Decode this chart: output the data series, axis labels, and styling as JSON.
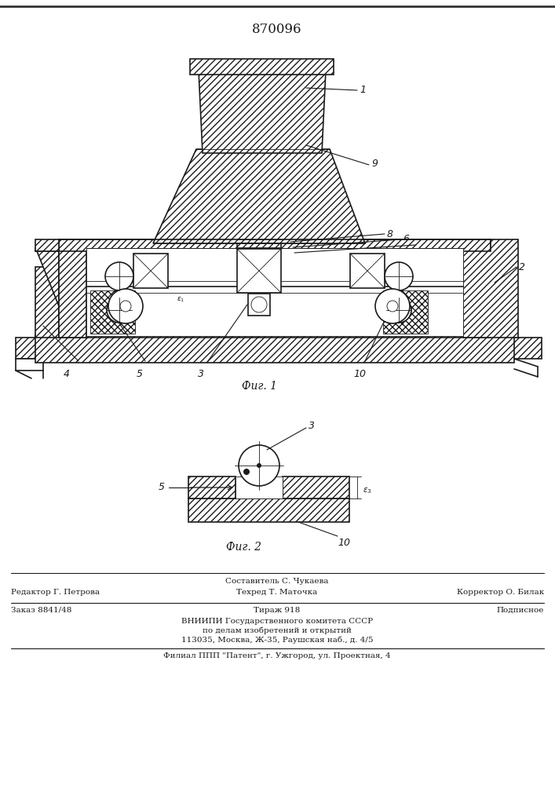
{
  "patent_number": "870096",
  "fig1_caption": "Фиг. 1",
  "fig2_caption": "Фиг. 2",
  "footer_line1_left": "Редактор Г. Петрова",
  "footer_line1_center_top": "Составитель С. Чукаева",
  "footer_line1_center": "Техред Т. Маточка",
  "footer_line1_right": "Корректор О. Билак",
  "footer_line2_left": "Заказ 8841/48",
  "footer_line2_center": "Тираж 918",
  "footer_line2_right": "Подписное",
  "footer_line3": "ВНИИПИ Государственного комитета СССР",
  "footer_line4": "по делам изобретений и открытий",
  "footer_line5": "113035, Москва, Ж-35, Раушская наб., д. 4/5",
  "footer_line6": "Филиал ППП \"Патент\", г. Ужгород, ул. Проектная, 4",
  "bg_color": "#ffffff",
  "line_color": "#1a1a1a",
  "text_color": "#1a1a1a"
}
